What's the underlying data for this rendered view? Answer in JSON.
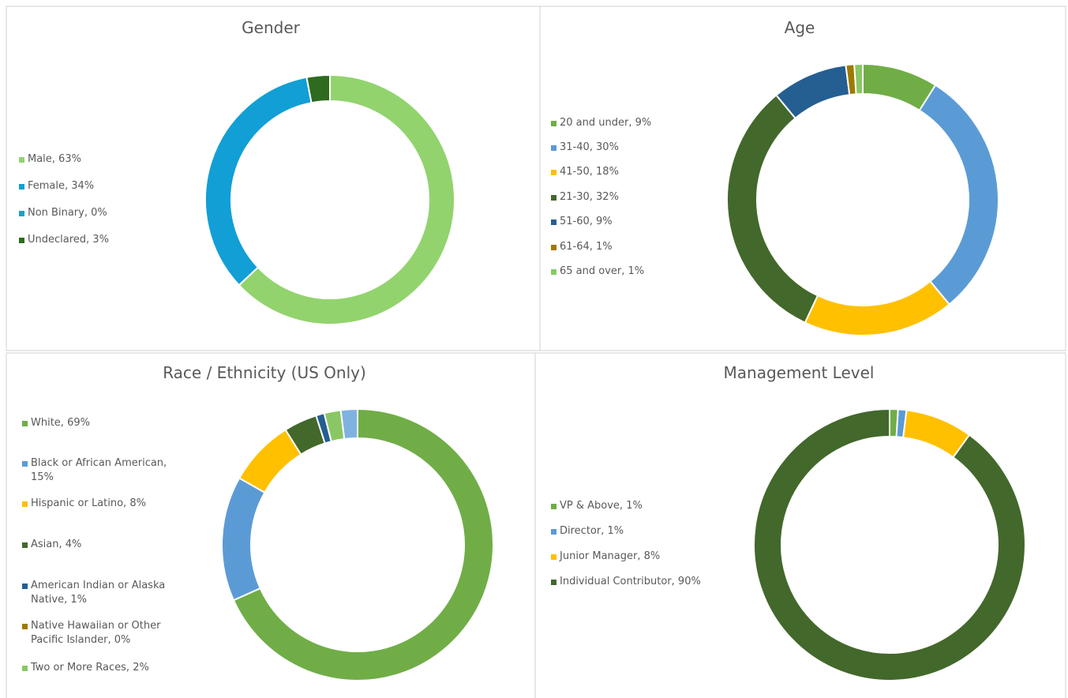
{
  "chart_data": [
    {
      "type": "donut",
      "title": "Gender",
      "categories": [
        "Male, 63%",
        "Female, 34%",
        "Non Binary, 0%",
        "Undeclared, 3%"
      ],
      "values": [
        63,
        34,
        0,
        3
      ],
      "colors": [
        "#92d36e",
        "#119fd6",
        "#1fa0c8",
        "#2e6b1f"
      ]
    },
    {
      "type": "donut",
      "title": "Age",
      "categories": [
        "20 and under, 9%",
        "31-40, 30%",
        "41-50, 18%",
        "21-30, 32%",
        "51-60, 9%",
        "61-64, 1%",
        "65 and over, 1%"
      ],
      "values": [
        9,
        30,
        18,
        32,
        9,
        1,
        1
      ],
      "colors": [
        "#70ad47",
        "#5b9bd5",
        "#ffc000",
        "#43682b",
        "#255e91",
        "#9e7a00",
        "#8ac764"
      ]
    },
    {
      "type": "donut",
      "title": "Race / Ethnicity (US Only)",
      "categories": [
        "White, 69%",
        "Black or African American, 15%",
        "Hispanic or Latino, 8%",
        "Asian, 4%",
        "American Indian or Alaska Native, 1%",
        "Native Hawaiian or Other Pacific Islander, 0%",
        "Two or More Races, 2%",
        null
      ],
      "values": [
        69,
        15,
        8,
        4,
        1,
        0,
        2,
        2
      ],
      "colors": [
        "#70ad47",
        "#5b9bd5",
        "#ffc000",
        "#43682b",
        "#255e91",
        "#9e7a00",
        "#8ac764",
        "#7fb2e0"
      ]
    },
    {
      "type": "donut",
      "title": "Management Level",
      "categories": [
        "VP & Above, 1%",
        "Director, 1%",
        "Junior Manager, 8%",
        "Individual Contributor, 90%"
      ],
      "values": [
        1,
        1,
        8,
        90
      ],
      "colors": [
        "#70ad47",
        "#5b9bd5",
        "#ffc000",
        "#43682b"
      ]
    }
  ]
}
